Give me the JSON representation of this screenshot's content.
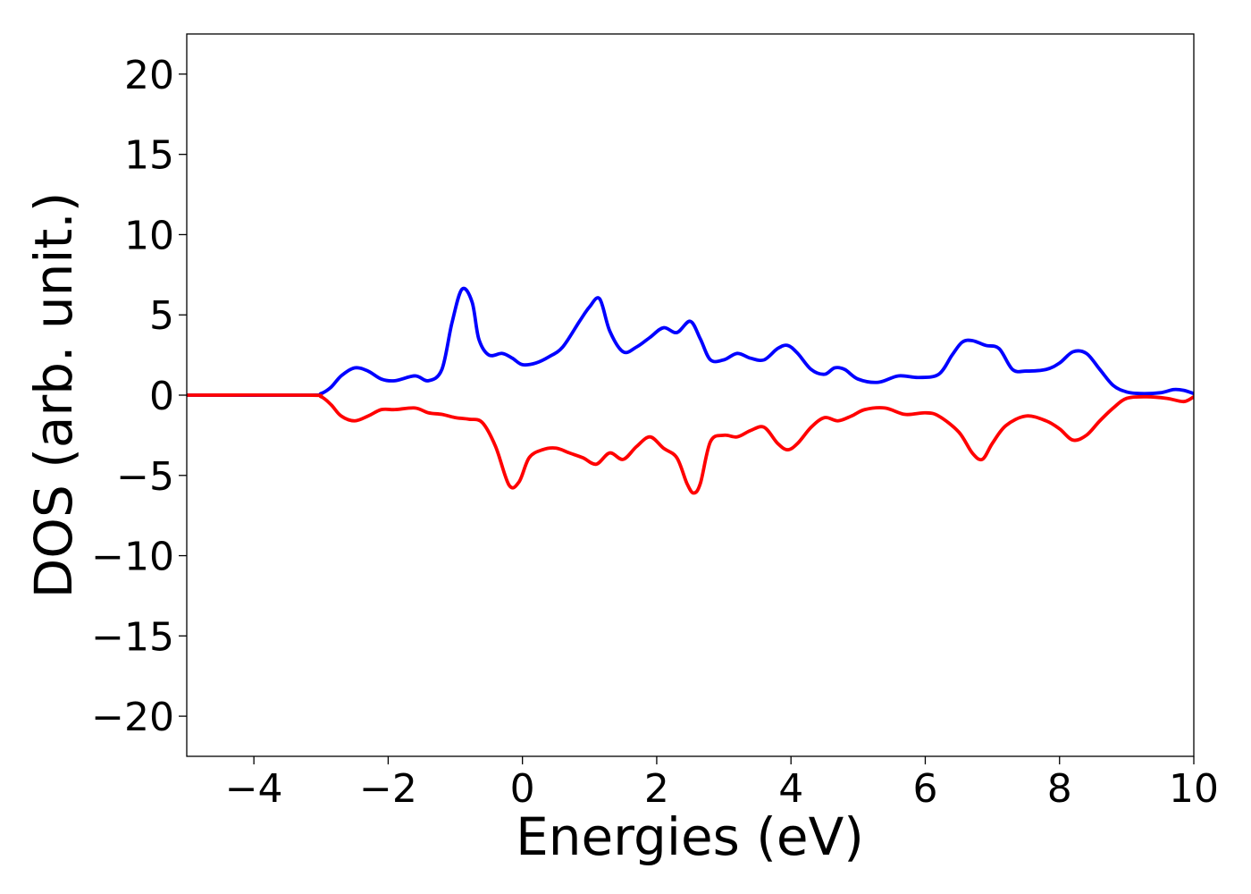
{
  "chart_data": {
    "type": "line",
    "title": "",
    "xlabel": "Energies (eV)",
    "ylabel": "DOS (arb. unit.)",
    "xlim": [
      -5,
      10
    ],
    "ylim": [
      -22.5,
      22.5
    ],
    "xticks": [
      -4,
      -2,
      0,
      2,
      4,
      6,
      8,
      10
    ],
    "yticks": [
      -20,
      -15,
      -10,
      -5,
      0,
      5,
      10,
      15,
      20
    ],
    "xtick_labels": [
      "−4",
      "−2",
      "0",
      "2",
      "4",
      "6",
      "8",
      "10"
    ],
    "ytick_labels": [
      "−20",
      "−15",
      "−10",
      "−5",
      "0",
      "5",
      "10",
      "15",
      "20"
    ],
    "grid": false,
    "legend": "none",
    "series": [
      {
        "color": "#0000ff",
        "x": [
          -5,
          -3.2,
          -3.0,
          -2.85,
          -2.7,
          -2.5,
          -2.3,
          -2.1,
          -1.9,
          -1.6,
          -1.4,
          -1.2,
          -1.05,
          -0.9,
          -0.75,
          -0.65,
          -0.5,
          -0.3,
          -0.15,
          0.0,
          0.2,
          0.4,
          0.6,
          0.85,
          1.0,
          1.15,
          1.3,
          1.5,
          1.7,
          1.9,
          2.1,
          2.3,
          2.5,
          2.65,
          2.8,
          3.0,
          3.2,
          3.4,
          3.6,
          3.8,
          3.95,
          4.1,
          4.3,
          4.5,
          4.65,
          4.8,
          5.0,
          5.3,
          5.6,
          5.9,
          6.2,
          6.4,
          6.55,
          6.7,
          6.9,
          7.1,
          7.3,
          7.5,
          7.8,
          8.0,
          8.2,
          8.4,
          8.6,
          8.8,
          9.0,
          9.2,
          9.5,
          9.7,
          9.85,
          10.0
        ],
        "y": [
          0,
          0,
          0.1,
          0.5,
          1.2,
          1.7,
          1.5,
          1.0,
          0.9,
          1.2,
          0.9,
          1.6,
          4.5,
          6.6,
          5.8,
          3.5,
          2.5,
          2.6,
          2.3,
          1.9,
          2.0,
          2.4,
          3.0,
          4.6,
          5.5,
          6.0,
          4.0,
          2.7,
          3.0,
          3.6,
          4.2,
          3.9,
          4.6,
          3.5,
          2.2,
          2.2,
          2.6,
          2.3,
          2.2,
          2.9,
          3.1,
          2.6,
          1.6,
          1.3,
          1.7,
          1.6,
          1.0,
          0.8,
          1.2,
          1.1,
          1.3,
          2.5,
          3.3,
          3.4,
          3.1,
          2.9,
          1.6,
          1.5,
          1.6,
          2.0,
          2.7,
          2.6,
          1.6,
          0.6,
          0.2,
          0.1,
          0.15,
          0.35,
          0.3,
          0.1
        ]
      },
      {
        "color": "#ff0000",
        "x": [
          -5,
          -3.2,
          -3.0,
          -2.85,
          -2.7,
          -2.5,
          -2.3,
          -2.1,
          -1.9,
          -1.6,
          -1.4,
          -1.2,
          -1.0,
          -0.8,
          -0.6,
          -0.4,
          -0.2,
          -0.05,
          0.1,
          0.3,
          0.5,
          0.7,
          0.9,
          1.1,
          1.3,
          1.5,
          1.7,
          1.9,
          2.1,
          2.3,
          2.45,
          2.55,
          2.65,
          2.8,
          3.0,
          3.2,
          3.4,
          3.6,
          3.8,
          3.95,
          4.1,
          4.3,
          4.5,
          4.7,
          4.9,
          5.1,
          5.4,
          5.7,
          6.0,
          6.2,
          6.5,
          6.7,
          6.85,
          7.0,
          7.2,
          7.5,
          7.8,
          8.0,
          8.2,
          8.4,
          8.6,
          8.8,
          9.0,
          9.3,
          9.6,
          9.85,
          10.0
        ],
        "y": [
          0,
          0,
          -0.1,
          -0.6,
          -1.3,
          -1.6,
          -1.3,
          -0.9,
          -0.9,
          -0.8,
          -1.1,
          -1.2,
          -1.4,
          -1.5,
          -1.7,
          -3.2,
          -5.6,
          -5.4,
          -3.9,
          -3.4,
          -3.3,
          -3.6,
          -3.9,
          -4.3,
          -3.6,
          -4.0,
          -3.2,
          -2.6,
          -3.3,
          -3.9,
          -5.5,
          -6.1,
          -5.5,
          -2.9,
          -2.5,
          -2.6,
          -2.2,
          -2.0,
          -3.0,
          -3.4,
          -3.0,
          -2.0,
          -1.4,
          -1.6,
          -1.3,
          -0.9,
          -0.8,
          -1.2,
          -1.1,
          -1.3,
          -2.3,
          -3.6,
          -4.0,
          -3.0,
          -1.9,
          -1.3,
          -1.6,
          -2.1,
          -2.8,
          -2.5,
          -1.6,
          -0.8,
          -0.2,
          -0.1,
          -0.2,
          -0.4,
          -0.1
        ]
      }
    ]
  }
}
